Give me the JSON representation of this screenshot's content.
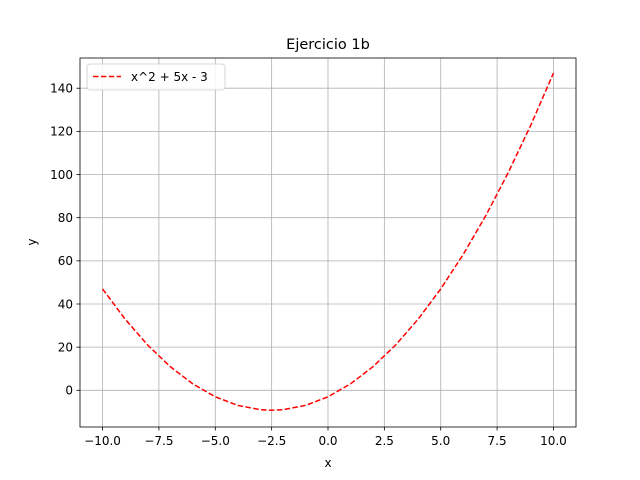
{
  "chart_data": {
    "type": "line",
    "title": "Ejercicio 1b",
    "xlabel": "x",
    "ylabel": "y",
    "xlim": [
      -11,
      11
    ],
    "ylim": [
      -17,
      154
    ],
    "x_ticks": [
      -10.0,
      -7.5,
      -5.0,
      -2.5,
      0.0,
      2.5,
      5.0,
      7.5,
      10.0
    ],
    "x_tick_labels": [
      "−10.0",
      "−7.5",
      "−5.0",
      "−2.5",
      "0.0",
      "2.5",
      "5.0",
      "7.5",
      "10.0"
    ],
    "y_ticks": [
      0,
      20,
      40,
      60,
      80,
      100,
      120,
      140
    ],
    "y_tick_labels": [
      "0",
      "20",
      "40",
      "60",
      "80",
      "100",
      "120",
      "140"
    ],
    "grid": true,
    "legend_position": "upper-left",
    "series": [
      {
        "name": "x^2 + 5x - 3",
        "color": "#ff0000",
        "linestyle": "dashed",
        "x": [
          -10,
          -9,
          -8,
          -7,
          -6,
          -5,
          -4,
          -3,
          -2.5,
          -2,
          -1,
          0,
          1,
          2,
          3,
          4,
          5,
          6,
          7,
          8,
          9,
          10
        ],
        "y": [
          47,
          33,
          21,
          11,
          3,
          -3,
          -7,
          -9,
          -9.25,
          -9,
          -7,
          -3,
          3,
          11,
          21,
          33,
          47,
          63,
          81,
          101,
          123,
          147
        ]
      }
    ]
  }
}
